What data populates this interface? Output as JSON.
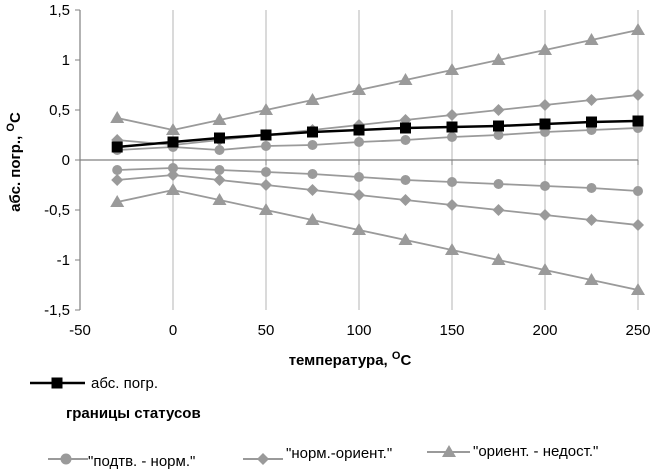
{
  "chart_data": {
    "type": "line",
    "xlabel": "температура, ",
    "xlabel_unit_sup": "O",
    "xlabel_unit": "C",
    "ylabel": "абс. погр., ",
    "ylabel_unit_sup": "O",
    "ylabel_unit": "C",
    "xlim": [
      -50,
      250
    ],
    "ylim": [
      -1.5,
      1.5
    ],
    "xticks": [
      -50,
      0,
      50,
      100,
      150,
      200,
      250
    ],
    "xtick_labels": [
      "-50",
      "0",
      "50",
      "100",
      "150",
      "200",
      "250"
    ],
    "yticks": [
      1.5,
      1,
      0.5,
      0,
      -0.5,
      -1,
      -1.5
    ],
    "ytick_labels": [
      "1,5",
      "1",
      "0,5",
      "0",
      "-0,5",
      "-1",
      "-1,5"
    ],
    "grid": "vertical",
    "legend_group_title": "границы статусов",
    "series": [
      {
        "name": "абс. погр.",
        "marker": "square",
        "color": "#000000",
        "x": [
          -30,
          0,
          25,
          50,
          75,
          100,
          125,
          150,
          175,
          200,
          225,
          250
        ],
        "y": [
          0.13,
          0.18,
          0.22,
          0.25,
          0.28,
          0.3,
          0.32,
          0.33,
          0.34,
          0.36,
          0.38,
          0.39
        ]
      },
      {
        "name": "\"подтв. - норм.\"",
        "marker": "circle",
        "color": "#9a9a9a",
        "x": [
          -30,
          0,
          25,
          50,
          75,
          100,
          125,
          150,
          175,
          200,
          225,
          250
        ],
        "y": [
          0.1,
          0.13,
          0.1,
          0.14,
          0.15,
          0.18,
          0.2,
          0.23,
          0.25,
          0.28,
          0.3,
          0.32
        ]
      },
      {
        "name": "\"подтв. - норм.\"",
        "marker": "circle",
        "color": "#9a9a9a",
        "x": [
          -30,
          0,
          25,
          50,
          75,
          100,
          125,
          150,
          175,
          200,
          225,
          250
        ],
        "y": [
          -0.1,
          -0.08,
          -0.1,
          -0.12,
          -0.14,
          -0.17,
          -0.2,
          -0.22,
          -0.24,
          -0.26,
          -0.28,
          -0.31
        ]
      },
      {
        "name": "\"норм.-ориент.\"",
        "marker": "diamond",
        "color": "#9a9a9a",
        "x": [
          -30,
          0,
          25,
          50,
          75,
          100,
          125,
          150,
          175,
          200,
          225,
          250
        ],
        "y": [
          0.2,
          0.15,
          0.2,
          0.25,
          0.3,
          0.35,
          0.4,
          0.45,
          0.5,
          0.55,
          0.6,
          0.65
        ]
      },
      {
        "name": "\"норм.-ориент.\"",
        "marker": "diamond",
        "color": "#9a9a9a",
        "x": [
          -30,
          0,
          25,
          50,
          75,
          100,
          125,
          150,
          175,
          200,
          225,
          250
        ],
        "y": [
          -0.2,
          -0.15,
          -0.2,
          -0.25,
          -0.3,
          -0.35,
          -0.4,
          -0.45,
          -0.5,
          -0.55,
          -0.6,
          -0.65
        ]
      },
      {
        "name": "\"ориент. - недост.\"",
        "marker": "triangle",
        "color": "#9a9a9a",
        "x": [
          -30,
          0,
          25,
          50,
          75,
          100,
          125,
          150,
          175,
          200,
          225,
          250
        ],
        "y": [
          0.42,
          0.3,
          0.4,
          0.5,
          0.6,
          0.7,
          0.8,
          0.9,
          1.0,
          1.1,
          1.2,
          1.3
        ]
      },
      {
        "name": "\"ориент. - недост.\"",
        "marker": "triangle",
        "color": "#9a9a9a",
        "x": [
          -30,
          0,
          25,
          50,
          75,
          100,
          125,
          150,
          175,
          200,
          225,
          250
        ],
        "y": [
          -0.42,
          -0.3,
          -0.4,
          -0.5,
          -0.6,
          -0.7,
          -0.8,
          -0.9,
          -1.0,
          -1.1,
          -1.2,
          -1.3
        ]
      }
    ],
    "legend": [
      {
        "label": "абс. погр.",
        "marker": "square",
        "color": "#000000"
      },
      {
        "label": "\"подтв. - норм.\"",
        "marker": "circle",
        "color": "#9a9a9a"
      },
      {
        "label": "\"норм.-ориент.\"",
        "marker": "diamond",
        "color": "#9a9a9a"
      },
      {
        "label": "\"ориент. - недост.\"",
        "marker": "triangle",
        "color": "#9a9a9a"
      }
    ]
  }
}
